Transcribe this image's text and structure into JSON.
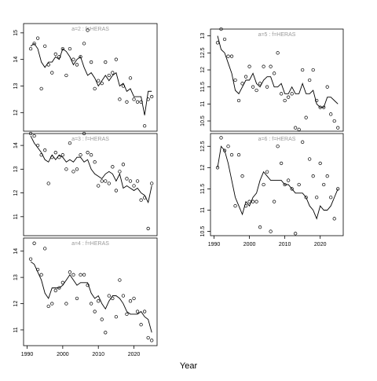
{
  "xlabel": "Year",
  "chart_data": [
    {
      "type": "line",
      "title": "a=2 : f=HERAS",
      "x": [
        1991,
        1992,
        1993,
        1994,
        1995,
        1996,
        1997,
        1998,
        1999,
        2000,
        2001,
        2002,
        2003,
        2004,
        2005,
        2006,
        2007,
        2008,
        2009,
        2010,
        2011,
        2012,
        2013,
        2014,
        2015,
        2016,
        2017,
        2018,
        2019,
        2020,
        2021,
        2022,
        2023,
        2024,
        2025
      ],
      "series": [
        {
          "color": "#000000",
          "marker": "circle",
          "values": [
            14.4,
            14.6,
            14.8,
            12.9,
            14.5,
            13.8,
            13.5,
            14.2,
            14.1,
            14.4,
            13.4,
            14.4,
            14.0,
            13.8,
            14.1,
            14.6,
            15.1,
            13.9,
            12.9,
            13.2,
            13.1,
            13.9,
            13.4,
            13.5,
            14.0,
            12.5,
            13.0,
            12.4,
            13.3,
            12.5,
            12.4,
            12.4,
            11.5,
            12.5,
            12.6
          ]
        },
        {
          "color": "#000000",
          "marker": "line",
          "values": [
            14.5,
            14.6,
            14.4,
            13.9,
            13.7,
            13.9,
            13.9,
            14.1,
            14.0,
            14.4,
            14.3,
            14.1,
            13.8,
            14.0,
            14.1,
            13.7,
            13.4,
            13.5,
            13.3,
            13.0,
            13.2,
            13.4,
            13.2,
            13.4,
            13.5,
            13.0,
            13.1,
            12.8,
            12.9,
            12.6,
            12.6,
            12.6,
            11.9,
            12.8,
            12.8
          ]
        }
      ],
      "xlim": [
        1989,
        2026.5
      ],
      "ylim": [
        11.3,
        15.35
      ],
      "yticks": [
        12,
        13,
        14,
        15
      ]
    },
    {
      "type": "line",
      "title": "a=3 : f=HERAS",
      "x": [
        1991,
        1992,
        1993,
        1994,
        1995,
        1996,
        1997,
        1998,
        1999,
        2000,
        2001,
        2002,
        2003,
        2004,
        2005,
        2006,
        2007,
        2008,
        2009,
        2010,
        2011,
        2012,
        2013,
        2014,
        2015,
        2016,
        2017,
        2018,
        2019,
        2020,
        2021,
        2022,
        2023,
        2024,
        2025
      ],
      "series": [
        {
          "color": "#000000",
          "marker": "circle",
          "values": [
            14.5,
            14.4,
            14.0,
            13.6,
            13.8,
            12.4,
            13.5,
            13.7,
            13.5,
            13.6,
            13.0,
            14.1,
            12.9,
            13.0,
            13.6,
            14.5,
            13.7,
            13.6,
            13.3,
            12.3,
            12.5,
            12.5,
            12.4,
            13.1,
            12.1,
            12.9,
            13.2,
            12.6,
            12.5,
            12.3,
            12.5,
            11.7,
            11.8,
            10.5,
            12.4
          ]
        },
        {
          "color": "#000000",
          "marker": "line",
          "values": [
            14.4,
            14.1,
            13.9,
            13.7,
            13.4,
            13.3,
            13.6,
            13.4,
            13.6,
            13.5,
            13.3,
            13.4,
            13.3,
            13.5,
            13.5,
            13.3,
            13.4,
            13.0,
            12.8,
            12.7,
            12.6,
            12.8,
            12.9,
            12.8,
            12.5,
            12.8,
            12.2,
            12.3,
            12.2,
            12.1,
            12.2,
            12.0,
            11.9,
            11.6,
            12.3
          ]
        }
      ],
      "xlim": [
        1989,
        2026.5
      ],
      "ylim": [
        10.2,
        14.5
      ],
      "yticks": [
        11,
        12,
        13,
        14
      ]
    },
    {
      "type": "line",
      "title": "a=4 : f=HERAS",
      "x": [
        1991,
        1992,
        1993,
        1994,
        1995,
        1996,
        1997,
        1998,
        1999,
        2000,
        2001,
        2002,
        2003,
        2004,
        2005,
        2006,
        2007,
        2008,
        2009,
        2010,
        2011,
        2012,
        2013,
        2014,
        2015,
        2016,
        2017,
        2018,
        2019,
        2020,
        2021,
        2022,
        2023,
        2024,
        2025
      ],
      "series": [
        {
          "color": "#000000",
          "marker": "circle",
          "values": [
            13.7,
            14.3,
            13.3,
            13.1,
            14.1,
            11.9,
            12.0,
            12.5,
            12.6,
            12.8,
            12.0,
            13.2,
            13.1,
            12.2,
            13.1,
            13.1,
            12.7,
            12.0,
            11.7,
            12.1,
            11.4,
            10.9,
            12.3,
            12.2,
            11.5,
            12.9,
            12.3,
            11.6,
            12.1,
            12.2,
            11.7,
            11.2,
            11.7,
            10.7,
            10.6
          ]
        },
        {
          "color": "#000000",
          "marker": "line",
          "values": [
            13.6,
            13.5,
            13.2,
            12.9,
            12.4,
            12.2,
            12.6,
            12.6,
            12.6,
            12.7,
            12.9,
            13.1,
            12.9,
            12.7,
            12.8,
            12.8,
            12.8,
            12.4,
            12.2,
            12.3,
            12.0,
            11.8,
            12.1,
            12.3,
            12.3,
            12.2,
            12.0,
            11.7,
            11.6,
            11.6,
            11.6,
            11.7,
            11.5,
            11.4,
            10.9
          ]
        }
      ],
      "xlim": [
        1989,
        2026.5
      ],
      "xticks": [
        1990,
        2000,
        2010,
        2020
      ],
      "ylim": [
        10.4,
        14.5
      ],
      "yticks": [
        11,
        12,
        13,
        14
      ]
    },
    {
      "type": "line",
      "title": "a=5 : f=HERAS",
      "x": [
        1991,
        1992,
        1993,
        1994,
        1995,
        1996,
        1997,
        1998,
        1999,
        2000,
        2001,
        2002,
        2003,
        2004,
        2005,
        2006,
        2007,
        2008,
        2009,
        2010,
        2011,
        2012,
        2013,
        2014,
        2015,
        2016,
        2017,
        2018,
        2019,
        2020,
        2021,
        2022,
        2023,
        2024,
        2025
      ],
      "series": [
        {
          "color": "#000000",
          "marker": "circle",
          "values": [
            12.8,
            13.2,
            12.9,
            12.4,
            12.4,
            11.7,
            11.1,
            11.6,
            11.8,
            12.1,
            11.5,
            11.4,
            11.6,
            12.1,
            11.5,
            12.1,
            11.9,
            12.5,
            11.3,
            11.1,
            11.2,
            11.3,
            10.3,
            10.25,
            12.0,
            10.6,
            11.7,
            12.0,
            11.1,
            10.9,
            10.9,
            11.5,
            10.7,
            10.5,
            10.3
          ]
        },
        {
          "color": "#000000",
          "marker": "line",
          "values": [
            13.0,
            12.6,
            12.5,
            12.2,
            11.9,
            11.4,
            11.3,
            11.5,
            11.7,
            11.7,
            11.9,
            11.6,
            11.5,
            11.7,
            11.8,
            11.8,
            11.5,
            11.5,
            11.6,
            11.3,
            11.3,
            11.5,
            11.3,
            11.3,
            11.6,
            11.3,
            11.3,
            11.4,
            11.0,
            10.9,
            10.9,
            11.2,
            11.2,
            11.1,
            11.0
          ]
        }
      ],
      "xlim": [
        1989,
        2026.5
      ],
      "ylim": [
        10.2,
        13.2
      ],
      "yticks": [
        10.5,
        11.0,
        11.5,
        12.0,
        12.5,
        13.0
      ]
    },
    {
      "type": "line",
      "title": "a=6 : f=HERAS",
      "x": [
        1991,
        1992,
        1993,
        1994,
        1995,
        1996,
        1997,
        1998,
        1999,
        2000,
        2001,
        2002,
        2003,
        2004,
        2005,
        2006,
        2007,
        2008,
        2009,
        2010,
        2011,
        2012,
        2013,
        2014,
        2015,
        2016,
        2017,
        2018,
        2019,
        2020,
        2021,
        2022,
        2023,
        2024,
        2025
      ],
      "series": [
        {
          "color": "#000000",
          "marker": "circle",
          "values": [
            12.0,
            12.7,
            12.4,
            12.5,
            12.3,
            11.1,
            12.3,
            11.8,
            11.1,
            11.2,
            11.2,
            11.2,
            10.6,
            11.6,
            11.9,
            10.5,
            11.2,
            12.5,
            12.1,
            11.6,
            11.7,
            11.5,
            10.45,
            11.6,
            12.6,
            11.3,
            12.2,
            11.8,
            11.3,
            12.1,
            11.6,
            11.8,
            11.3,
            10.8,
            11.5
          ]
        },
        {
          "color": "#000000",
          "marker": "line",
          "values": [
            12.0,
            12.5,
            12.4,
            12.1,
            11.7,
            11.3,
            11.1,
            10.9,
            11.2,
            11.1,
            11.3,
            11.4,
            11.7,
            11.9,
            11.8,
            11.7,
            11.7,
            11.7,
            11.7,
            11.6,
            11.6,
            11.5,
            11.4,
            11.4,
            11.4,
            11.3,
            11.1,
            11.0,
            10.8,
            11.1,
            11.0,
            11.0,
            11.1,
            11.3,
            11.5
          ]
        }
      ],
      "xlim": [
        1989,
        2026.5
      ],
      "xticks": [
        1990,
        2000,
        2010,
        2020
      ],
      "ylim": [
        10.4,
        12.8
      ],
      "yticks": [
        10.5,
        11.0,
        11.5,
        12.0,
        12.5
      ]
    }
  ]
}
